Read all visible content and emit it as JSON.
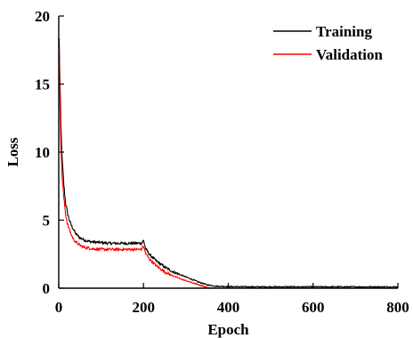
{
  "chart_data": {
    "type": "line",
    "title": "",
    "xlabel": "Epoch",
    "ylabel": "Loss",
    "xlim": [
      0,
      800
    ],
    "ylim": [
      0,
      20
    ],
    "xticks": [
      0,
      200,
      400,
      600,
      800
    ],
    "yticks": [
      0,
      5,
      10,
      15,
      20
    ],
    "grid": false,
    "legend_position": "top-right",
    "series": [
      {
        "name": "Training",
        "color": "#000000",
        "x": [
          1,
          3,
          5,
          8,
          12,
          16,
          20,
          25,
          30,
          35,
          40,
          50,
          60,
          70,
          80,
          100,
          120,
          140,
          160,
          180,
          195,
          200,
          205,
          215,
          230,
          250,
          270,
          290,
          310,
          330,
          350,
          370,
          400,
          450,
          500,
          550,
          600,
          650,
          700,
          750,
          800
        ],
        "values": [
          18.3,
          15.0,
          12.0,
          9.5,
          7.6,
          6.3,
          5.6,
          5.0,
          4.6,
          4.3,
          4.0,
          3.7,
          3.55,
          3.45,
          3.4,
          3.35,
          3.3,
          3.3,
          3.3,
          3.3,
          3.3,
          3.5,
          2.9,
          2.45,
          2.0,
          1.55,
          1.2,
          0.95,
          0.7,
          0.45,
          0.25,
          0.15,
          0.12,
          0.1,
          0.1,
          0.1,
          0.1,
          0.1,
          0.1,
          0.1,
          0.1
        ]
      },
      {
        "name": "Validation",
        "color": "#ff0000",
        "x": [
          1,
          3,
          5,
          8,
          12,
          16,
          20,
          25,
          30,
          35,
          40,
          50,
          60,
          70,
          80,
          100,
          120,
          140,
          160,
          180,
          195,
          200,
          205,
          215,
          230,
          250,
          270,
          290,
          310,
          330,
          345,
          355,
          365
        ],
        "values": [
          17.5,
          13.5,
          10.5,
          8.2,
          6.6,
          5.5,
          4.8,
          4.3,
          3.9,
          3.6,
          3.4,
          3.15,
          3.0,
          2.95,
          2.9,
          2.85,
          2.85,
          2.85,
          2.85,
          2.85,
          2.85,
          3.1,
          2.55,
          2.1,
          1.65,
          1.2,
          0.9,
          0.65,
          0.45,
          0.25,
          0.1,
          0.03,
          0.0
        ]
      }
    ]
  }
}
